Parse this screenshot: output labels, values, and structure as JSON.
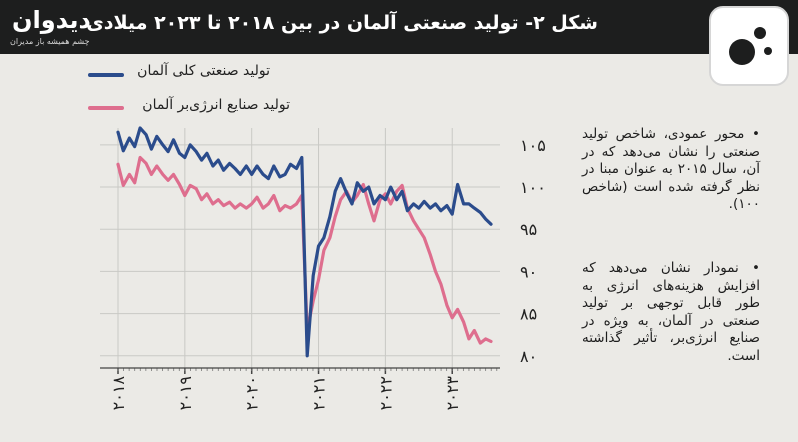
{
  "header": {
    "title": "شکل ۲- تولید صنعتی آلمان در بین ۲۰۱۸ تا ۲۰۲۳ میلادی",
    "logo_name": "دیدوان",
    "logo_tagline": "چشم همیشه باز مدیران",
    "brand_icon": "circles-logo-icon"
  },
  "legend": [
    {
      "label": "تولید صنعتی کلی آلمان",
      "color": "#2b4c8c"
    },
    {
      "label": "تولید صنایع انرژی‌بر آلمان",
      "color": "#de6e8e"
    }
  ],
  "notes": [
    "• محور عمودی، شاخص تولید صنعتی را نشان می‌دهد که در آن، سال ۲۰۱۵ به عنوان مبنا در نظر گرفته شده است (شاخص ۱۰۰).",
    "• نمودار نشان می‌دهد که افزایش هزینه‌های انرژی به طور قابل توجهی بر تولید صنعتی در آلمان، به ویژه در صنایع انرژی‌بر، تأثیر گذاشته است."
  ],
  "chart_data": {
    "type": "line",
    "title": "شکل ۲- تولید صنعتی آلمان در بین ۲۰۱۸ تا ۲۰۲۳ میلادی",
    "xlabel": "",
    "ylabel": "",
    "x_ticks": [
      "۲۰۱۸",
      "۲۰۱۹",
      "۲۰۲۰",
      "۲۰۲۱",
      "۲۰۲۲",
      "۲۰۲۳"
    ],
    "y_ticks": [
      80,
      85,
      90,
      95,
      100,
      105
    ],
    "y_tick_labels": [
      "۸۰",
      "۸۵",
      "۹۰",
      "۹۵",
      "۱۰۰",
      "۱۰۵"
    ],
    "ylim": [
      79.5,
      107
    ],
    "xlim": [
      2018.0,
      2024.0
    ],
    "grid": true,
    "legend_position": "top-left",
    "series": [
      {
        "name": "تولید صنعتی کلی آلمان",
        "color": "#2b4c8c",
        "points": [
          [
            2018.0,
            106.5
          ],
          [
            2018.08,
            104.3
          ],
          [
            2018.17,
            105.8
          ],
          [
            2018.25,
            104.8
          ],
          [
            2018.33,
            107.0
          ],
          [
            2018.42,
            106.2
          ],
          [
            2018.5,
            104.5
          ],
          [
            2018.58,
            106.0
          ],
          [
            2018.67,
            105.0
          ],
          [
            2018.75,
            104.2
          ],
          [
            2018.83,
            105.6
          ],
          [
            2018.92,
            104.0
          ],
          [
            2019.0,
            103.5
          ],
          [
            2019.08,
            105.0
          ],
          [
            2019.17,
            104.2
          ],
          [
            2019.25,
            103.2
          ],
          [
            2019.33,
            104.0
          ],
          [
            2019.42,
            102.5
          ],
          [
            2019.5,
            103.2
          ],
          [
            2019.58,
            102.0
          ],
          [
            2019.67,
            102.8
          ],
          [
            2019.75,
            102.2
          ],
          [
            2019.83,
            101.5
          ],
          [
            2019.92,
            102.5
          ],
          [
            2020.0,
            101.5
          ],
          [
            2020.08,
            102.5
          ],
          [
            2020.17,
            101.5
          ],
          [
            2020.25,
            101.0
          ],
          [
            2020.33,
            102.5
          ],
          [
            2020.42,
            101.2
          ],
          [
            2020.5,
            101.5
          ],
          [
            2020.58,
            102.7
          ],
          [
            2020.67,
            102.2
          ],
          [
            2020.75,
            103.5
          ],
          [
            2020.83,
            80.0
          ],
          [
            2020.92,
            89.5
          ],
          [
            2021.0,
            93.0
          ],
          [
            2021.08,
            94.0
          ],
          [
            2021.17,
            96.5
          ],
          [
            2021.25,
            99.5
          ],
          [
            2021.33,
            101.0
          ],
          [
            2021.42,
            99.3
          ],
          [
            2021.5,
            98.0
          ],
          [
            2021.58,
            100.5
          ],
          [
            2021.67,
            99.5
          ],
          [
            2021.75,
            100.0
          ],
          [
            2021.83,
            98.0
          ],
          [
            2021.92,
            99.0
          ],
          [
            2022.0,
            98.5
          ],
          [
            2022.08,
            100.0
          ],
          [
            2022.17,
            98.5
          ],
          [
            2022.25,
            99.5
          ],
          [
            2022.33,
            97.2
          ],
          [
            2022.42,
            98.0
          ],
          [
            2022.5,
            97.5
          ],
          [
            2022.58,
            98.3
          ],
          [
            2022.67,
            97.5
          ],
          [
            2022.75,
            98.0
          ],
          [
            2022.83,
            97.2
          ],
          [
            2022.92,
            97.8
          ],
          [
            2023.0,
            96.8
          ],
          [
            2023.08,
            100.3
          ],
          [
            2023.17,
            98.0
          ],
          [
            2023.25,
            98.0
          ],
          [
            2023.33,
            97.5
          ],
          [
            2023.42,
            97.0
          ],
          [
            2023.5,
            96.2
          ],
          [
            2023.58,
            95.6
          ]
        ]
      },
      {
        "name": "تولید صنایع انرژی‌بر آلمان",
        "color": "#de6e8e",
        "points": [
          [
            2018.0,
            102.7
          ],
          [
            2018.08,
            100.2
          ],
          [
            2018.17,
            101.5
          ],
          [
            2018.25,
            100.5
          ],
          [
            2018.33,
            103.5
          ],
          [
            2018.42,
            102.8
          ],
          [
            2018.5,
            101.5
          ],
          [
            2018.58,
            102.5
          ],
          [
            2018.67,
            101.5
          ],
          [
            2018.75,
            100.8
          ],
          [
            2018.83,
            101.5
          ],
          [
            2018.92,
            100.3
          ],
          [
            2019.0,
            99.0
          ],
          [
            2019.08,
            100.2
          ],
          [
            2019.17,
            99.8
          ],
          [
            2019.25,
            98.5
          ],
          [
            2019.33,
            99.2
          ],
          [
            2019.42,
            98.0
          ],
          [
            2019.5,
            98.5
          ],
          [
            2019.58,
            97.8
          ],
          [
            2019.67,
            98.2
          ],
          [
            2019.75,
            97.5
          ],
          [
            2019.83,
            98.0
          ],
          [
            2019.92,
            97.5
          ],
          [
            2020.0,
            98.0
          ],
          [
            2020.08,
            98.8
          ],
          [
            2020.17,
            97.5
          ],
          [
            2020.25,
            98.0
          ],
          [
            2020.33,
            99.0
          ],
          [
            2020.42,
            97.2
          ],
          [
            2020.5,
            97.8
          ],
          [
            2020.58,
            97.5
          ],
          [
            2020.67,
            98.0
          ],
          [
            2020.75,
            99.0
          ],
          [
            2020.83,
            83.0
          ],
          [
            2020.92,
            86.5
          ],
          [
            2021.0,
            89.0
          ],
          [
            2021.08,
            92.5
          ],
          [
            2021.17,
            94.0
          ],
          [
            2021.25,
            96.5
          ],
          [
            2021.33,
            98.5
          ],
          [
            2021.42,
            99.5
          ],
          [
            2021.5,
            98.2
          ],
          [
            2021.58,
            99.0
          ],
          [
            2021.67,
            100.3
          ],
          [
            2021.75,
            98.0
          ],
          [
            2021.83,
            96.0
          ],
          [
            2021.92,
            98.5
          ],
          [
            2022.0,
            99.2
          ],
          [
            2022.08,
            98.0
          ],
          [
            2022.17,
            99.5
          ],
          [
            2022.25,
            100.2
          ],
          [
            2022.33,
            97.5
          ],
          [
            2022.42,
            96.0
          ],
          [
            2022.5,
            95.0
          ],
          [
            2022.58,
            94.0
          ],
          [
            2022.67,
            92.0
          ],
          [
            2022.75,
            90.0
          ],
          [
            2022.83,
            88.5
          ],
          [
            2022.92,
            86.0
          ],
          [
            2023.0,
            84.5
          ],
          [
            2023.08,
            85.5
          ],
          [
            2023.17,
            84.0
          ],
          [
            2023.25,
            82.0
          ],
          [
            2023.33,
            83.0
          ],
          [
            2023.42,
            81.5
          ],
          [
            2023.5,
            82.0
          ],
          [
            2023.58,
            81.7
          ]
        ]
      }
    ]
  }
}
